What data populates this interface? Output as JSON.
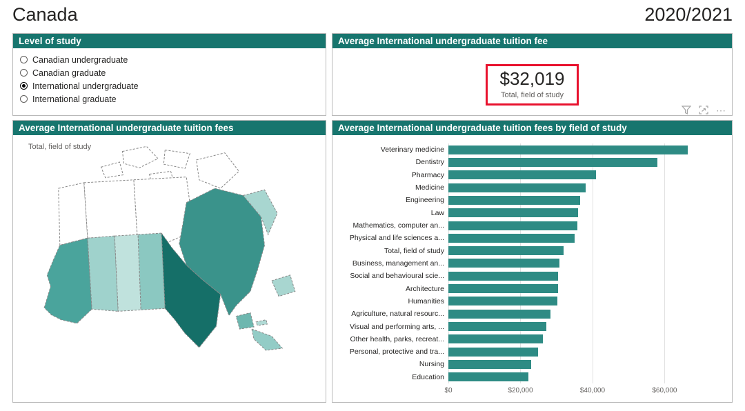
{
  "header": {
    "title": "Canada",
    "period": "2020/2021"
  },
  "colors": {
    "panel_header": "#17756e",
    "bar": "#2e8b84",
    "highlight_box": "#e8112d"
  },
  "level_panel": {
    "title": "Level of study",
    "options": [
      {
        "label": "Canadian undergraduate",
        "selected": false
      },
      {
        "label": "Canadian graduate",
        "selected": false
      },
      {
        "label": "International undergraduate",
        "selected": true
      },
      {
        "label": "International graduate",
        "selected": false
      }
    ]
  },
  "kpi_panel": {
    "title": "Average International undergraduate tuition fee",
    "value": "$32,019",
    "subtitle": "Total, field of study",
    "icons": {
      "filter": "funnel-icon",
      "focus": "focus-mode-icon",
      "more_glyph": "⋯"
    }
  },
  "map_panel": {
    "title": "Average International undergraduate tuition fees",
    "annotation": "Total, field of study",
    "provinces": {
      "yukon": "#ffffff",
      "northwest-territories": "#ffffff",
      "nunavut": "#ffffff",
      "arctic-island": "#ffffff",
      "british-columbia": "#4aa49c",
      "alberta": "#9fd2cc",
      "saskatchewan": "#c0e2dd",
      "manitoba": "#8bc8c1",
      "ontario": "#156f68",
      "quebec": "#3a938b",
      "newfoundland-labrador": "#a8d6d0",
      "new-brunswick": "#6db7af",
      "prince-edward-island": "#b0dad5",
      "nova-scotia": "#93ccc6"
    }
  },
  "bar_panel": {
    "title": "Average International undergraduate tuition fees by field of study"
  },
  "chart_data": {
    "type": "bar",
    "orientation": "horizontal",
    "title": "Average International undergraduate tuition fees by field of study",
    "categories": [
      "Veterinary medicine",
      "Dentistry",
      "Pharmacy",
      "Medicine",
      "Engineering",
      "Law",
      "Mathematics, computer an...",
      "Physical and life sciences a...",
      "Total, field of study",
      "Business, management an...",
      "Social and behavioural scie...",
      "Architecture",
      "Humanities",
      "Agriculture, natural resourc...",
      "Visual and performing arts, ...",
      "Other health, parks, recreat...",
      "Personal, protective and tra...",
      "Nursing",
      "Education"
    ],
    "values": [
      66500,
      58000,
      41000,
      38000,
      36600,
      36000,
      35800,
      35000,
      32019,
      30800,
      30500,
      30400,
      30200,
      28300,
      27100,
      26200,
      24900,
      23000,
      22300
    ],
    "x_ticks": [
      "$0",
      "$20,000",
      "$40,000",
      "$60,000"
    ],
    "x_tick_values": [
      0,
      20000,
      40000,
      60000
    ],
    "xlim": [
      0,
      76000
    ],
    "xlabel": "",
    "ylabel": "",
    "grid": true,
    "legend": false
  }
}
